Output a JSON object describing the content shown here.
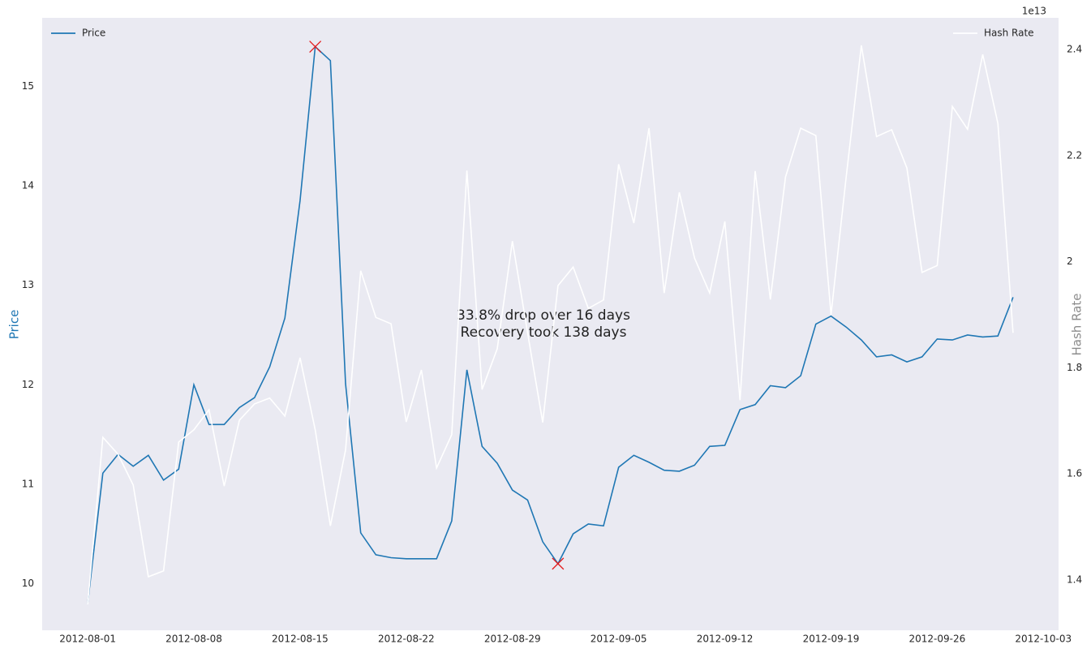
{
  "chart_data": {
    "type": "line",
    "x": [
      "2012-08-01",
      "2012-08-02",
      "2012-08-03",
      "2012-08-04",
      "2012-08-05",
      "2012-08-06",
      "2012-08-07",
      "2012-08-08",
      "2012-08-09",
      "2012-08-10",
      "2012-08-11",
      "2012-08-12",
      "2012-08-13",
      "2012-08-14",
      "2012-08-15",
      "2012-08-16",
      "2012-08-17",
      "2012-08-18",
      "2012-08-19",
      "2012-08-20",
      "2012-08-21",
      "2012-08-22",
      "2012-08-23",
      "2012-08-24",
      "2012-08-25",
      "2012-08-26",
      "2012-08-27",
      "2012-08-28",
      "2012-08-29",
      "2012-08-30",
      "2012-08-31",
      "2012-09-01",
      "2012-09-02",
      "2012-09-03",
      "2012-09-04",
      "2012-09-05",
      "2012-09-06",
      "2012-09-07",
      "2012-09-08",
      "2012-09-09",
      "2012-09-10",
      "2012-09-11",
      "2012-09-12",
      "2012-09-13",
      "2012-09-14",
      "2012-09-15",
      "2012-09-16",
      "2012-09-17",
      "2012-09-18",
      "2012-09-19",
      "2012-09-20",
      "2012-09-21",
      "2012-09-22",
      "2012-09-23",
      "2012-09-24",
      "2012-09-25",
      "2012-09-26",
      "2012-09-27",
      "2012-09-28",
      "2012-09-29",
      "2012-09-30",
      "2012-10-01"
    ],
    "series": [
      {
        "name": "Price",
        "color": "#1f77b4",
        "axis": "y",
        "legend_loc": "upper left",
        "values": [
          9.8,
          11.11,
          11.3,
          11.18,
          11.29,
          11.04,
          11.15,
          12.0,
          11.6,
          11.6,
          11.77,
          11.87,
          12.18,
          12.67,
          13.85,
          15.4,
          15.26,
          12.01,
          10.51,
          10.29,
          10.26,
          10.25,
          10.25,
          10.25,
          10.63,
          12.15,
          11.38,
          11.21,
          10.94,
          10.84,
          10.42,
          10.2,
          10.5,
          10.6,
          10.58,
          11.17,
          11.29,
          11.22,
          11.14,
          11.13,
          11.19,
          11.38,
          11.39,
          11.75,
          11.8,
          11.99,
          11.97,
          12.09,
          12.61,
          12.69,
          12.58,
          12.45,
          12.28,
          12.3,
          12.23,
          12.28,
          12.46,
          12.45,
          12.5,
          12.48,
          12.49,
          12.88
        ]
      },
      {
        "name": "Hash Rate",
        "color": "#ffffff",
        "axis": "y2",
        "legend_loc": "upper right",
        "values": [
          1.354,
          1.669,
          1.637,
          1.579,
          1.406,
          1.417,
          1.66,
          1.683,
          1.721,
          1.577,
          1.701,
          1.732,
          1.743,
          1.709,
          1.819,
          1.683,
          1.502,
          1.645,
          1.983,
          1.895,
          1.883,
          1.698,
          1.796,
          1.611,
          1.674,
          2.172,
          1.759,
          1.836,
          2.039,
          1.866,
          1.697,
          1.955,
          1.99,
          1.912,
          1.928,
          2.184,
          2.073,
          2.252,
          1.941,
          2.131,
          2.007,
          1.941,
          2.076,
          1.739,
          2.171,
          1.929,
          2.16,
          2.252,
          2.238,
          1.9,
          2.16,
          2.408,
          2.236,
          2.249,
          2.177,
          1.98,
          1.993,
          2.293,
          2.25,
          2.391,
          2.261,
          1.866
        ]
      }
    ],
    "markers": {
      "x": [
        "2012-08-16",
        "2012-09-01"
      ],
      "values": [
        15.4,
        10.2
      ],
      "color": "#e41a1c"
    },
    "annotation": [
      "33.8% drop over 16 days",
      "Recovery took 138 days"
    ],
    "ylabel": "Price",
    "y2label": "Hash Rate",
    "y2_offset": "1e13",
    "xlim": [
      "2012-07-29",
      "2012-10-04"
    ],
    "xticks": [
      "2012-08-01",
      "2012-08-08",
      "2012-08-15",
      "2012-08-22",
      "2012-08-29",
      "2012-09-05",
      "2012-09-12",
      "2012-09-19",
      "2012-09-26",
      "2012-10-03"
    ],
    "ylim": [
      9.53,
      15.69
    ],
    "yticks": [
      10,
      11,
      12,
      13,
      14,
      15
    ],
    "y2lim": [
      1.305,
      2.46
    ],
    "y2ticks": [
      1.4,
      1.6,
      1.8,
      2.0,
      2.2,
      2.4
    ],
    "grid": false
  }
}
